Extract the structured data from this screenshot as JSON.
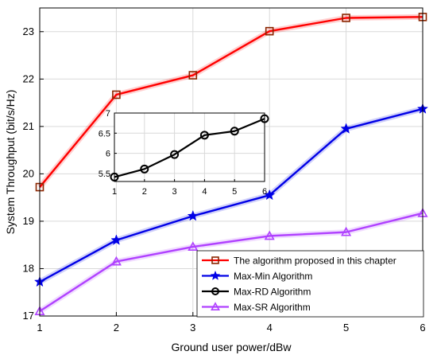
{
  "chart_data": [
    {
      "type": "line",
      "title": "",
      "xlabel": "Ground user power/dBw",
      "ylabel": "System Throughput (bit/s/Hz)",
      "xlim": [
        1,
        6
      ],
      "ylim": [
        17,
        23.5
      ],
      "xticks": [
        1,
        2,
        3,
        4,
        5,
        6
      ],
      "yticks": [
        17,
        18,
        19,
        20,
        21,
        22,
        23
      ],
      "grid": true,
      "legend_position": "bottom-right",
      "x": [
        1,
        2,
        3,
        4,
        5,
        6
      ],
      "series": [
        {
          "name": "The algorithm proposed in this chapter",
          "color": "#ff0000",
          "marker": "square",
          "marker_color": "#8b2500",
          "values": [
            19.72,
            21.67,
            22.08,
            23.01,
            23.29,
            23.31
          ]
        },
        {
          "name": "Max-Min Algorithm",
          "color": "#0000e6",
          "marker": "star",
          "values": [
            17.72,
            18.6,
            19.11,
            19.55,
            20.95,
            21.37
          ]
        },
        {
          "name": "Max-RD Algorithm",
          "color": "#000000",
          "marker": "circle",
          "values": null
        },
        {
          "name": "Max-SR Algorithm",
          "color": "#b041ff",
          "marker": "triangle",
          "values": [
            17.1,
            18.15,
            18.46,
            18.69,
            18.77,
            19.17
          ]
        }
      ]
    },
    {
      "type": "line",
      "title": "",
      "xlim": [
        1,
        6
      ],
      "ylim": [
        5.3,
        7
      ],
      "xticks": [
        1,
        2,
        3,
        4,
        5,
        6
      ],
      "yticks": [
        5.5,
        6,
        6.5,
        7
      ],
      "grid": true,
      "x": [
        1,
        2,
        3,
        4,
        5,
        6
      ],
      "series": [
        {
          "name": "Max-RD Algorithm",
          "color": "#000000",
          "marker": "circle",
          "values": [
            5.41,
            5.61,
            5.97,
            6.45,
            6.55,
            6.86
          ]
        }
      ]
    }
  ]
}
